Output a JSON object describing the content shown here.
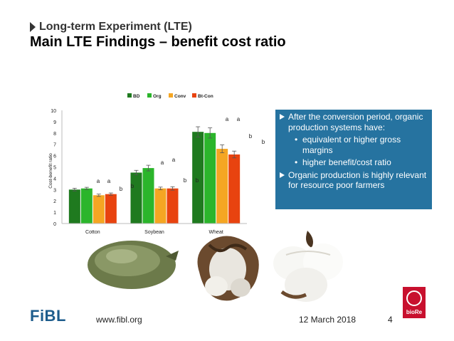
{
  "header": {
    "kicker": "Long-term Experiment (LTE)",
    "title": "Main LTE Findings – benefit cost ratio"
  },
  "chart_data": {
    "type": "bar",
    "title": "",
    "xlabel": "",
    "ylabel": "Cost-benefit ratio",
    "ylim": [
      0,
      10
    ],
    "yticks": [
      "0",
      "1",
      "2",
      "3",
      "4",
      "5",
      "6",
      "7",
      "8",
      "9",
      "10"
    ],
    "grid": false,
    "legend_position": "top-center",
    "categories": [
      "Cotton",
      "Soybean",
      "Wheat"
    ],
    "series": [
      {
        "name": "BD",
        "color": "#1f7a1f",
        "values": [
          3.0,
          4.5,
          8.1
        ],
        "errors": [
          0.12,
          0.2,
          0.45
        ]
      },
      {
        "name": "Org",
        "color": "#2bb52b",
        "values": [
          3.1,
          4.9,
          8.0
        ],
        "errors": [
          0.1,
          0.25,
          0.45
        ]
      },
      {
        "name": "Conv",
        "color": "#f5a623",
        "values": [
          2.5,
          3.1,
          6.6
        ],
        "errors": [
          0.1,
          0.12,
          0.35
        ]
      },
      {
        "name": "Bt-Con",
        "color": "#e8430f",
        "values": [
          2.6,
          3.1,
          6.1
        ],
        "errors": [
          0.1,
          0.15,
          0.3
        ]
      }
    ],
    "annotations": [
      "a",
      "a",
      "b",
      "b",
      "a",
      "a",
      "b",
      "b",
      "a",
      "a",
      "b",
      "b"
    ]
  },
  "panel": {
    "bullet1": "After the conversion period, organic production systems have:",
    "sub1": "equivalent or higher gross margins",
    "sub2": "higher benefit/cost ratio",
    "bullet2": "Organic production is highly relevant for resource poor farmers",
    "dot": "•"
  },
  "footer": {
    "logo": "FiBL",
    "url": "www.fibl.org",
    "date": "12 March 2018",
    "page": "4",
    "partner_logo": "bioRe"
  },
  "colors": {
    "panel": "#2673a0",
    "fibl_blue": "#1d5c8c",
    "biore_red": "#c8102e"
  }
}
